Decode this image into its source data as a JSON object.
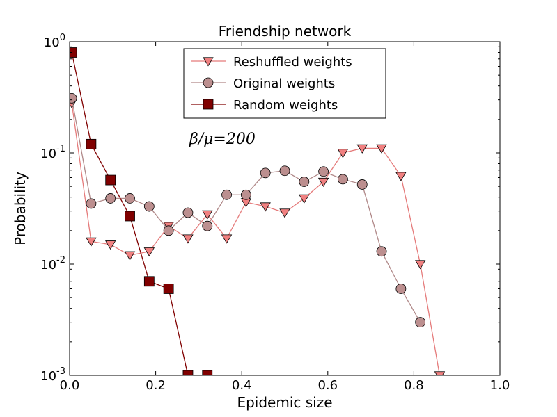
{
  "chart_data": {
    "type": "line",
    "title": "Friendship network",
    "xlabel": "Epidemic size",
    "ylabel": "Probability",
    "xlim": [
      0.0,
      1.0
    ],
    "ylim": [
      0.001,
      1.0
    ],
    "yscale": "log",
    "xticks": [
      "0.0",
      "0.2",
      "0.4",
      "0.6",
      "0.8",
      "1.0"
    ],
    "yticks": [
      {
        "value": 1.0,
        "base": "10",
        "exp": "0"
      },
      {
        "value": 0.1,
        "base": "10",
        "exp": "-1"
      },
      {
        "value": 0.01,
        "base": "10",
        "exp": "-2"
      },
      {
        "value": 0.001,
        "base": "10",
        "exp": "-3"
      }
    ],
    "annotation": "β/μ=200",
    "legend_position": "top-center",
    "grid": false,
    "series": [
      {
        "name": "Reshuffled weights",
        "marker": "triangle-down",
        "color": "#f08080",
        "line_color": "#e57b7b",
        "x": [
          0.005,
          0.05,
          0.095,
          0.14,
          0.185,
          0.23,
          0.275,
          0.32,
          0.365,
          0.41,
          0.455,
          0.5,
          0.545,
          0.59,
          0.635,
          0.68,
          0.725,
          0.77,
          0.815,
          0.86
        ],
        "y": [
          0.28,
          0.016,
          0.015,
          0.012,
          0.013,
          0.022,
          0.017,
          0.028,
          0.017,
          0.036,
          0.033,
          0.029,
          0.039,
          0.055,
          0.1,
          0.11,
          0.11,
          0.062,
          0.01,
          0.001
        ]
      },
      {
        "name": "Original weights",
        "marker": "circle",
        "color": "#bc8f8f",
        "line_color": "#b08888",
        "x": [
          0.005,
          0.05,
          0.095,
          0.14,
          0.185,
          0.23,
          0.275,
          0.32,
          0.365,
          0.41,
          0.455,
          0.5,
          0.545,
          0.59,
          0.635,
          0.68,
          0.725,
          0.77,
          0.815
        ],
        "y": [
          0.31,
          0.035,
          0.039,
          0.039,
          0.033,
          0.02,
          0.029,
          0.022,
          0.042,
          0.042,
          0.066,
          0.069,
          0.055,
          0.068,
          0.058,
          0.052,
          0.013,
          0.006,
          0.003
        ]
      },
      {
        "name": "Random weights",
        "marker": "square",
        "color": "#800000",
        "line_color": "#800000",
        "x": [
          0.005,
          0.05,
          0.095,
          0.14,
          0.185,
          0.23,
          0.275,
          0.32
        ],
        "y": [
          0.8,
          0.12,
          0.057,
          0.027,
          0.007,
          0.006,
          0.001,
          0.001
        ]
      }
    ]
  }
}
